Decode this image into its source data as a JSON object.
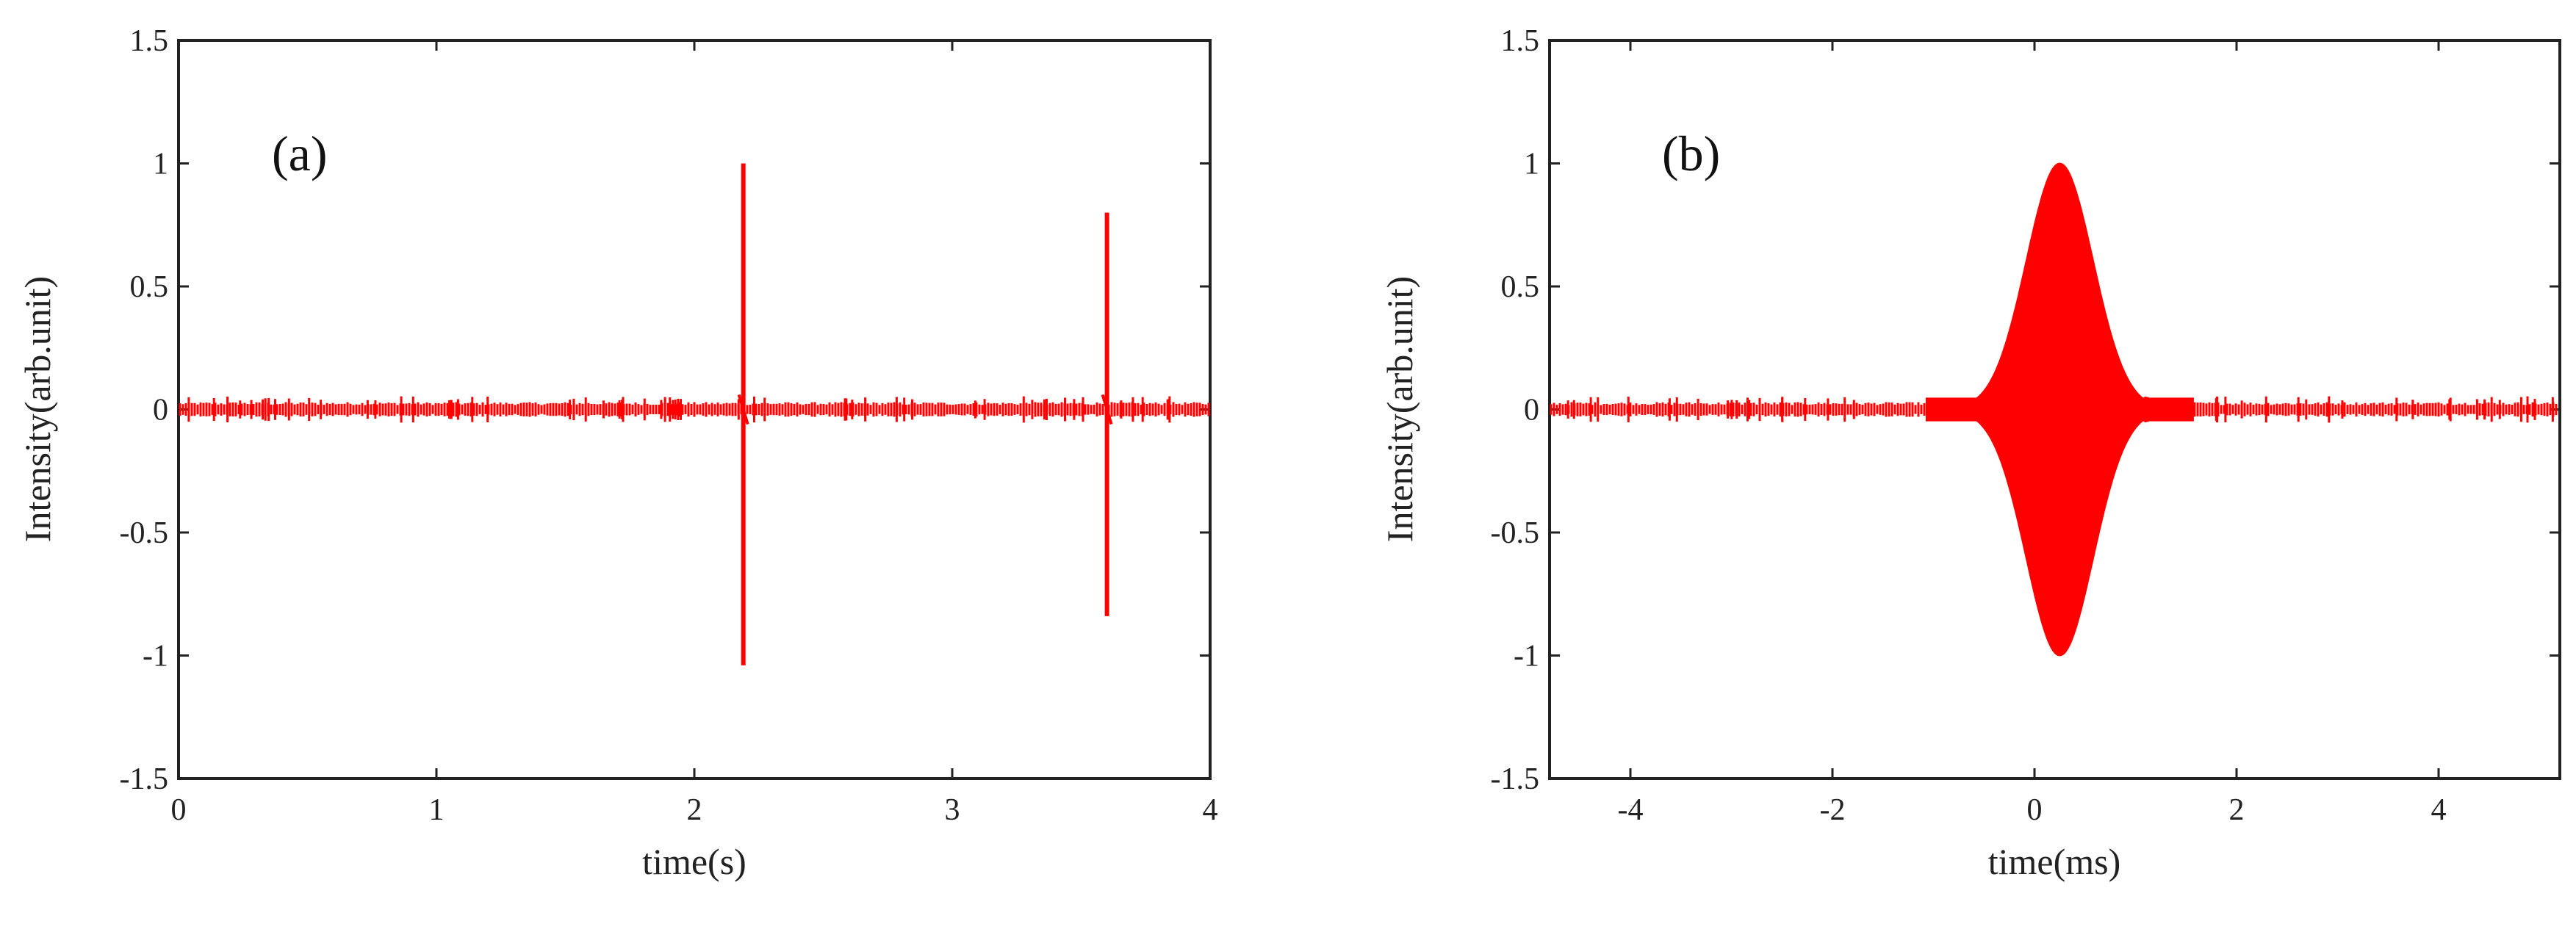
{
  "chart_data": [
    {
      "type": "line",
      "panel_label": "(a)",
      "xlabel": "time(s)",
      "ylabel": "Intensity(arb.unit)",
      "xlim": [
        0,
        4
      ],
      "ylim": [
        -1.5,
        1.5
      ],
      "xticks": [
        0,
        1,
        2,
        3,
        4
      ],
      "xtick_labels": [
        "0",
        "1",
        "2",
        "3",
        "4"
      ],
      "yticks": [
        1.5,
        1,
        0.5,
        0,
        -0.5,
        -1,
        -1.5
      ],
      "ytick_labels": [
        "1.5",
        "1",
        "0.5",
        "0",
        "-0.5",
        "-1",
        "-1.5"
      ],
      "grid": false,
      "color": "#ff0000",
      "baseline_noise_amplitude": 0.03,
      "spikes": [
        {
          "x": 2.19,
          "max": 1.0,
          "min": -1.04
        },
        {
          "x": 3.6,
          "max": 0.8,
          "min": -0.84
        }
      ]
    },
    {
      "type": "line",
      "panel_label": "(b)",
      "xlabel": "time(ms)",
      "ylabel": "Intensity(arb.unit)",
      "xlim": [
        -4.8,
        5.2
      ],
      "ylim": [
        -1.5,
        1.5
      ],
      "xticks": [
        -4,
        -2,
        0,
        2,
        4
      ],
      "xtick_labels": [
        "-4",
        "-2",
        "0",
        "2",
        "4"
      ],
      "yticks": [
        1.5,
        1,
        0.5,
        0,
        -0.5,
        -1,
        -1.5
      ],
      "ytick_labels": [
        "1.5",
        "1",
        "0.5",
        "0",
        "-0.5",
        "-1",
        "-1.5"
      ],
      "grid": false,
      "color": "#ff0000",
      "baseline_noise_amplitude": 0.03,
      "pulse": {
        "center": 0.25,
        "peak": 1.0,
        "min": -1.0,
        "width": 0.33
      }
    }
  ]
}
